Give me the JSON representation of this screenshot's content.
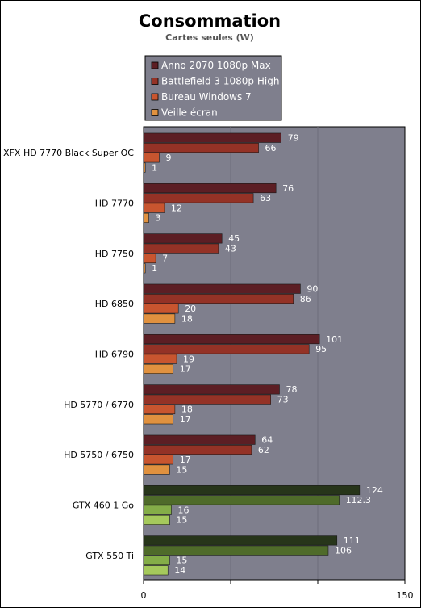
{
  "chart_data": {
    "type": "bar",
    "orientation": "horizontal",
    "title": "Consommation",
    "subtitle": "Cartes seules (W)",
    "xlim": [
      0,
      150
    ],
    "x_ticks": [
      0,
      150
    ],
    "grid": true,
    "legend_position": "top",
    "categories": [
      "XFX HD 7770 Black Super OC",
      "HD 7770",
      "HD 7750",
      "HD 6850",
      "HD 6790",
      "HD 5770 / 6770",
      "HD 5750 / 6750",
      "GTX 460 1 Go",
      "GTX 550 Ti"
    ],
    "category_vendor": [
      "amd",
      "amd",
      "amd",
      "amd",
      "amd",
      "amd",
      "amd",
      "nvidia",
      "nvidia"
    ],
    "series": [
      {
        "name": "Anno 2070 1080p Max",
        "values": [
          79,
          76,
          45,
          90,
          101,
          78,
          64,
          124,
          111
        ]
      },
      {
        "name": "Battlefield 3 1080p High",
        "values": [
          66,
          63,
          43,
          86,
          95,
          73,
          62,
          112.3,
          106
        ]
      },
      {
        "name": "Bureau Windows 7",
        "values": [
          9,
          12,
          7,
          20,
          19,
          18,
          17,
          16,
          15
        ]
      },
      {
        "name": "Veille écran",
        "values": [
          1,
          3,
          1,
          18,
          17,
          17,
          15,
          15,
          14
        ]
      }
    ],
    "colors": {
      "plot_background": "#7f7f8d",
      "amd": [
        "#5c1e24",
        "#943226",
        "#c8552f",
        "#e0913f"
      ],
      "nvidia": [
        "#27351a",
        "#4f6b2a",
        "#84ad48",
        "#a5c95c"
      ],
      "legend_background": "#7f7f8d"
    }
  }
}
